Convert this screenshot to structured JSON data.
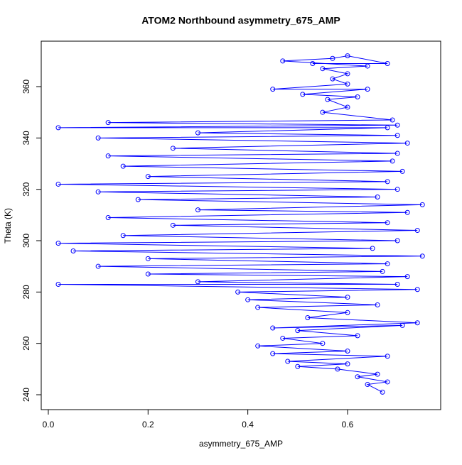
{
  "chart_data": {
    "type": "line",
    "title": "ATOM2 Northbound asymmetry_675_AMP",
    "x_label": "asymmetry_675_AMP",
    "y_label": "Theta (K)",
    "color": "#0000ff",
    "markers": true,
    "xlim": [
      -0.0142,
      0.7867
    ],
    "ylim": [
      234.2,
      377.7
    ],
    "xticks": [
      {
        "value": 0,
        "label": "0.0"
      },
      0.2,
      0.4,
      0.6
    ],
    "yticks": [
      240,
      260,
      280,
      300,
      320,
      340,
      360
    ],
    "x": [
      0.67,
      0.64,
      0.68,
      0.62,
      0.66,
      0.58,
      0.5,
      0.6,
      0.48,
      0.68,
      0.45,
      0.6,
      0.42,
      0.55,
      0.47,
      0.62,
      0.5,
      0.71,
      0.45,
      0.74,
      0.52,
      0.6,
      0.42,
      0.66,
      0.4,
      0.6,
      0.38,
      0.74,
      0.02,
      0.7,
      0.3,
      0.72,
      0.2,
      0.67,
      0.1,
      0.68,
      0.2,
      0.75,
      0.05,
      0.65,
      0.02,
      0.7,
      0.15,
      0.74,
      0.25,
      0.68,
      0.12,
      0.72,
      0.3,
      0.75,
      0.18,
      0.66,
      0.1,
      0.7,
      0.02,
      0.68,
      0.2,
      0.71,
      0.15,
      0.69,
      0.12,
      0.7,
      0.25,
      0.72,
      0.1,
      0.7,
      0.3,
      0.68,
      0.02,
      0.7,
      0.12,
      0.69,
      0.55,
      0.6,
      0.56,
      0.62,
      0.51,
      0.64,
      0.45,
      0.6,
      0.57,
      0.6,
      0.55,
      0.64,
      0.47,
      0.57,
      0.6,
      0.68,
      0.53
    ],
    "values": [
      241,
      244,
      245,
      247,
      248,
      250,
      251,
      252,
      253,
      255,
      256,
      257,
      259,
      260,
      262,
      263,
      265,
      267,
      266,
      268,
      270,
      272,
      274,
      275,
      277,
      278,
      280,
      281,
      283,
      283,
      284,
      286,
      287,
      288,
      290,
      291,
      293,
      294,
      296,
      297,
      299,
      300,
      302,
      304,
      306,
      307,
      309,
      311,
      312,
      314,
      316,
      317,
      319,
      320,
      322,
      323,
      325,
      327,
      329,
      331,
      333,
      334,
      336,
      338,
      340,
      341,
      342,
      344,
      344,
      345,
      346,
      347,
      350,
      352,
      355,
      356,
      357,
      359,
      359,
      361,
      363,
      365,
      367,
      368,
      370,
      371,
      372,
      369,
      369
    ]
  }
}
